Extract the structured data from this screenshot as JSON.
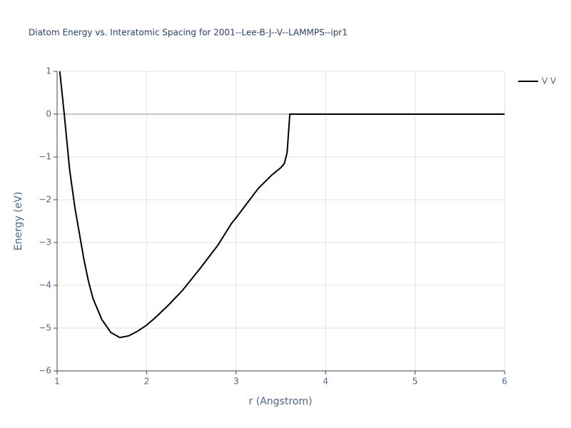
{
  "chart_data": {
    "type": "line",
    "title": "Diatom Energy vs. Interatomic Spacing for 2001--Lee-B-J--V--LAMMPS--ipr1",
    "x_label": "r (Angstrom)",
    "y_label": "Energy (eV)",
    "x": [
      1.03,
      1.08,
      1.14,
      1.2,
      1.25,
      1.3,
      1.35,
      1.4,
      1.5,
      1.6,
      1.7,
      1.8,
      1.9,
      2.0,
      2.1,
      2.25,
      2.4,
      2.6,
      2.8,
      2.95,
      3.0,
      3.25,
      3.4,
      3.5,
      3.54,
      3.57,
      3.6,
      4,
      5,
      6
    ],
    "series": [
      {
        "name": "V V",
        "color": "#000000",
        "values": [
          1.0,
          0.0,
          -1.3,
          -2.2,
          -2.8,
          -3.4,
          -3.9,
          -4.3,
          -4.8,
          -5.1,
          -5.22,
          -5.18,
          -5.07,
          -4.93,
          -4.75,
          -4.45,
          -4.12,
          -3.6,
          -3.05,
          -2.55,
          -2.42,
          -1.73,
          -1.42,
          -1.25,
          -1.15,
          -0.9,
          0,
          0,
          0,
          0
        ]
      }
    ],
    "xlim": [
      1,
      6
    ],
    "ylim": [
      -6,
      1
    ],
    "xticks": [
      1,
      2,
      3,
      4,
      5,
      6
    ],
    "yticks": [
      1,
      0,
      {
        "value": -1,
        "label": "−1"
      },
      {
        "value": -2,
        "label": "−2"
      },
      {
        "value": -3,
        "label": "−3"
      },
      {
        "value": -4,
        "label": "−4"
      },
      {
        "value": -5,
        "label": "−5"
      },
      {
        "value": -6,
        "label": "−6"
      }
    ],
    "grid": true,
    "legend": "top-right"
  }
}
